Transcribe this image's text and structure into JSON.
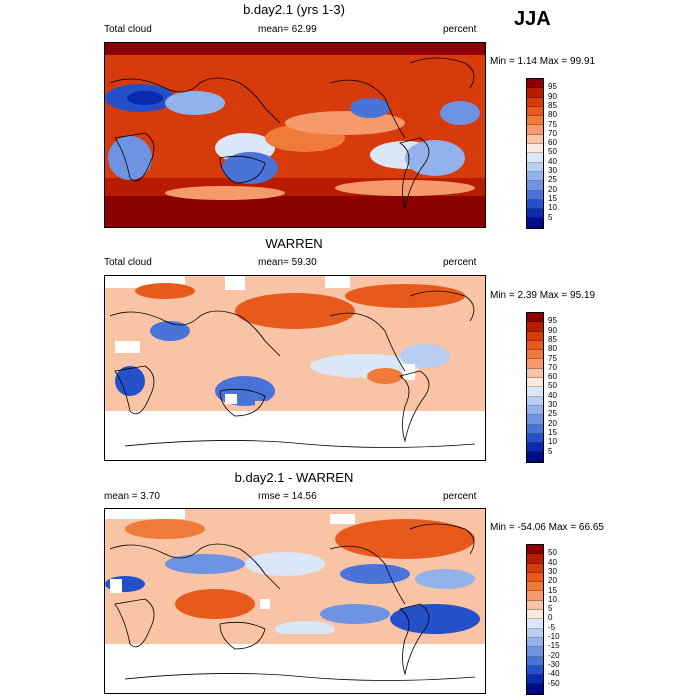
{
  "season": "JJA",
  "panels": [
    {
      "title": "b.day2.1 (yrs 1-3)",
      "left_label": "Total cloud",
      "center_label": "mean=  62.99",
      "right_label": "percent",
      "minmax": "Min =   1.14 Max =  99.91",
      "colorbar_labels": [
        "95",
        "90",
        "85",
        "80",
        "75",
        "70",
        "60",
        "50",
        "40",
        "30",
        "25",
        "20",
        "15",
        "10",
        "5"
      ],
      "colors": [
        "#8b0000",
        "#b71c00",
        "#d73a0b",
        "#e85a1c",
        "#f07a3a",
        "#f59a6a",
        "#f9c4a6",
        "#fde8db",
        "#dbe6f7",
        "#b7cdf2",
        "#93b1ea",
        "#6e93e2",
        "#4a73d8",
        "#2451c9",
        "#0a2ab0",
        "#000c8a"
      ]
    },
    {
      "title": "WARREN",
      "left_label": "Total cloud",
      "center_label": "mean=  59.30",
      "right_label": "percent",
      "minmax": "Min =   2.39 Max =  95.19",
      "colorbar_labels": [
        "95",
        "90",
        "85",
        "80",
        "75",
        "70",
        "60",
        "50",
        "40",
        "30",
        "25",
        "20",
        "15",
        "10",
        "5"
      ],
      "colors": [
        "#8b0000",
        "#b71c00",
        "#d73a0b",
        "#e85a1c",
        "#f07a3a",
        "#f59a6a",
        "#f9c4a6",
        "#fde8db",
        "#dbe6f7",
        "#b7cdf2",
        "#93b1ea",
        "#6e93e2",
        "#4a73d8",
        "#2451c9",
        "#0a2ab0",
        "#000c8a"
      ]
    },
    {
      "title": "b.day2.1 - WARREN",
      "left_label": "mean =   3.70",
      "center_label": "rmse =  14.56",
      "right_label": "percent",
      "minmax": "Min = -54.06 Max =  66.65",
      "colorbar_labels": [
        "50",
        "40",
        "30",
        "20",
        "15",
        "10",
        "5",
        "0",
        "-5",
        "-10",
        "-15",
        "-20",
        "-30",
        "-40",
        "-50"
      ],
      "colors": [
        "#8b0000",
        "#b71c00",
        "#d73a0b",
        "#e85a1c",
        "#f07a3a",
        "#f59a6a",
        "#f9c4a6",
        "#fde8db",
        "#dbe6f7",
        "#b7cdf2",
        "#93b1ea",
        "#6e93e2",
        "#4a73d8",
        "#2451c9",
        "#0a2ab0",
        "#000c8a"
      ]
    }
  ]
}
